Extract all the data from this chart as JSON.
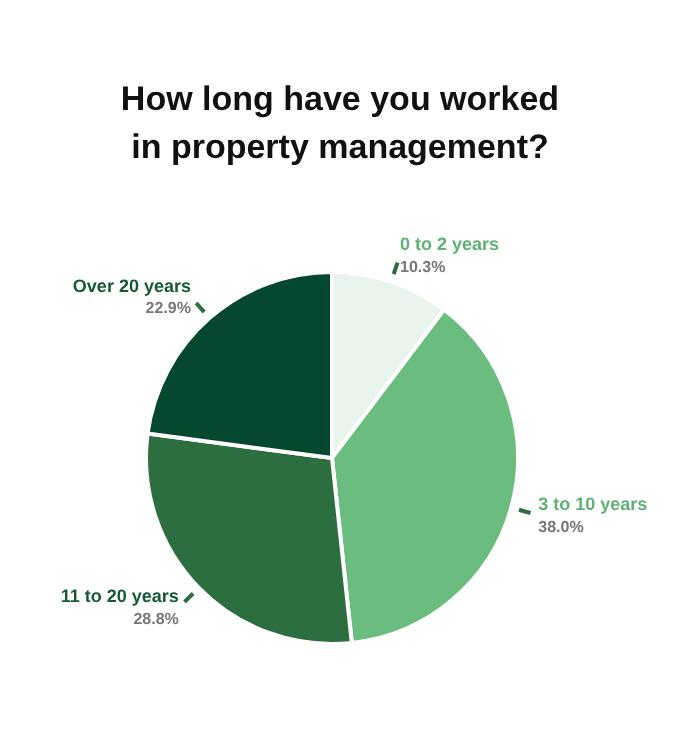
{
  "chart_data": {
    "type": "pie",
    "title": "How long have you worked in property management?",
    "categories": [
      "0 to 2 years",
      "3 to 10 years",
      "11 to 20 years",
      "Over 20 years"
    ],
    "values": [
      10.3,
      38.0,
      28.8,
      22.9
    ],
    "colors": [
      "#e9f4ec",
      "#6abd7e",
      "#2c6e3f",
      "#06472f"
    ],
    "value_labels": [
      "10.3%",
      "38.0%",
      "28.8%",
      "22.9%"
    ],
    "legend": false
  }
}
